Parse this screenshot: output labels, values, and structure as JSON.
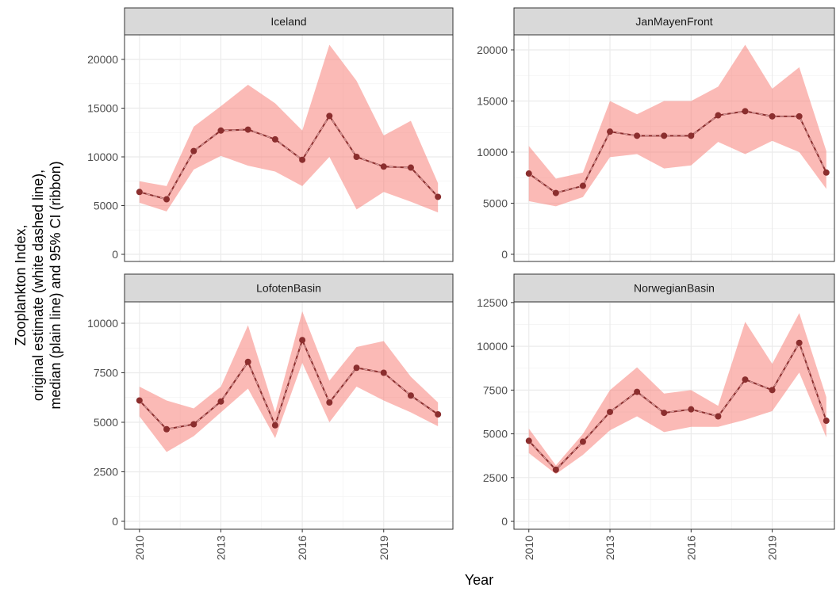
{
  "chart_data": [
    {
      "type": "line",
      "title": "Iceland",
      "x": [
        2010,
        2011,
        2012,
        2013,
        2014,
        2015,
        2016,
        2017,
        2018,
        2019,
        2020,
        2021
      ],
      "values": [
        6400,
        5650,
        10600,
        12700,
        12800,
        11800,
        9700,
        14200,
        10000,
        9000,
        8900,
        5900
      ],
      "lower": [
        5300,
        4400,
        8700,
        10100,
        9100,
        8500,
        7000,
        10000,
        4600,
        6400,
        5400,
        4300
      ],
      "upper": [
        7500,
        7000,
        13100,
        15200,
        17400,
        15500,
        12700,
        21500,
        17800,
        12200,
        13700,
        7300
      ],
      "xlim": [
        2009.45,
        2021.55
      ],
      "xticks": [
        2010,
        2013,
        2016,
        2019
      ],
      "ylim": [
        -730,
        22520
      ],
      "yticks": [
        0,
        5000,
        10000,
        15000,
        20000
      ]
    },
    {
      "type": "line",
      "title": "JanMayenFront",
      "x": [
        2010,
        2011,
        2012,
        2013,
        2014,
        2015,
        2016,
        2017,
        2018,
        2019,
        2020,
        2021
      ],
      "values": [
        7900,
        6000,
        6700,
        12000,
        11600,
        11600,
        11600,
        13600,
        14000,
        13500,
        13500,
        8000
      ],
      "lower": [
        5200,
        4700,
        5600,
        9500,
        9800,
        8400,
        8700,
        11000,
        9800,
        11100,
        10000,
        6400
      ],
      "upper": [
        10600,
        7400,
        8000,
        15000,
        13700,
        15000,
        15000,
        16400,
        20500,
        16200,
        18300,
        10100
      ],
      "xlim": [
        2009.45,
        2021.3
      ],
      "xticks": [
        2010,
        2013,
        2016,
        2019
      ],
      "ylim": [
        -700,
        21470
      ],
      "yticks": [
        0,
        5000,
        10000,
        15000,
        20000
      ]
    },
    {
      "type": "line",
      "title": "LofotenBasin",
      "x": [
        2010,
        2011,
        2012,
        2013,
        2014,
        2015,
        2016,
        2017,
        2018,
        2019,
        2020,
        2021
      ],
      "values": [
        6100,
        4650,
        4900,
        6050,
        8050,
        4850,
        9150,
        6000,
        7750,
        7500,
        6350,
        5400
      ],
      "lower": [
        5300,
        3500,
        4300,
        5500,
        6700,
        4200,
        8000,
        5000,
        6800,
        6100,
        5500,
        4800
      ],
      "upper": [
        6800,
        6100,
        5700,
        6800,
        9900,
        5500,
        10600,
        7100,
        8800,
        9100,
        7300,
        6000
      ],
      "xlim": [
        2009.45,
        2021.55
      ],
      "xticks": [
        2010,
        2013,
        2016,
        2019
      ],
      "ylim": [
        -400,
        11080
      ],
      "yticks": [
        0,
        2500,
        5000,
        7500,
        10000
      ]
    },
    {
      "type": "line",
      "title": "NorwegianBasin",
      "x": [
        2010,
        2011,
        2012,
        2013,
        2014,
        2015,
        2016,
        2017,
        2018,
        2019,
        2020,
        2021
      ],
      "values": [
        4600,
        2950,
        4550,
        6250,
        7400,
        6200,
        6400,
        6000,
        8100,
        7500,
        10200,
        5750
      ],
      "lower": [
        3900,
        2700,
        3800,
        5200,
        6000,
        5100,
        5400,
        5400,
        5800,
        6300,
        8500,
        4800
      ],
      "upper": [
        5300,
        3200,
        5000,
        7500,
        8800,
        7300,
        7500,
        6600,
        11400,
        9000,
        11900,
        7100
      ],
      "xlim": [
        2009.45,
        2021.3
      ],
      "xticks": [
        2010,
        2013,
        2016,
        2019
      ],
      "ylim": [
        -450,
        12540
      ],
      "yticks": [
        0,
        2500,
        5000,
        7500,
        10000,
        12500
      ]
    }
  ],
  "y_label": [
    "Zooplankton Index,",
    "original estimate (white dashed line),",
    "median (plain line) and 95% CI (ribbon)"
  ],
  "x_label": "Year"
}
